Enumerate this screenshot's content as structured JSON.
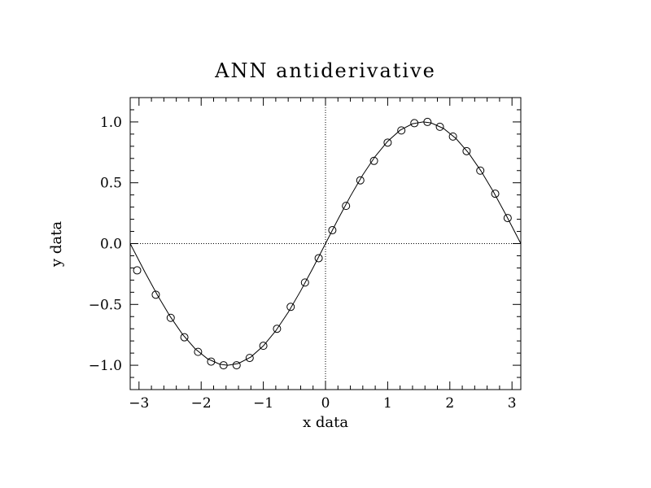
{
  "chart_data": {
    "type": "line",
    "title": "ANN antiderivative",
    "xlabel": "x data",
    "ylabel": "y data",
    "xlim": [
      -3.14159,
      3.14159
    ],
    "ylim": [
      -1.2,
      1.2
    ],
    "grid": false,
    "zero_lines": true,
    "x_ticks": [
      -3,
      -2,
      -1,
      0,
      1,
      2,
      3
    ],
    "x_tick_labels": [
      "−3",
      "−2",
      "−1",
      "0",
      "1",
      "2",
      "3"
    ],
    "y_ticks": [
      -1.0,
      -0.5,
      0.0,
      0.5,
      1.0
    ],
    "y_tick_labels": [
      "−1.0",
      "−0.5",
      "0.0",
      "0.5",
      "1.0"
    ],
    "series": [
      {
        "style": "line",
        "x": [
          -3.1416,
          -2.9,
          -2.7,
          -2.5,
          -2.3,
          -2.1,
          -1.9,
          -1.7,
          -1.5708,
          -1.4,
          -1.2,
          -1.0,
          -0.8,
          -0.6,
          -0.4,
          -0.2,
          0.0,
          0.2,
          0.4,
          0.6,
          0.8,
          1.0,
          1.2,
          1.4,
          1.5708,
          1.7,
          1.9,
          2.1,
          2.3,
          2.5,
          2.7,
          2.9,
          3.1416
        ],
        "y": [
          0.0,
          -0.239,
          -0.427,
          -0.598,
          -0.746,
          -0.863,
          -0.946,
          -0.992,
          -1.0,
          -0.985,
          -0.932,
          -0.841,
          -0.717,
          -0.565,
          -0.389,
          -0.199,
          0.0,
          0.199,
          0.389,
          0.565,
          0.717,
          0.841,
          0.932,
          0.985,
          1.0,
          0.992,
          0.946,
          0.863,
          0.746,
          0.598,
          0.427,
          0.239,
          0.0
        ]
      },
      {
        "style": "markers",
        "marker": "circle",
        "x": [
          -3.03,
          -2.73,
          -2.49,
          -2.27,
          -2.05,
          -1.84,
          -1.64,
          -1.43,
          -1.22,
          -1.0,
          -0.78,
          -0.56,
          -0.33,
          -0.11,
          0.11,
          0.33,
          0.56,
          0.78,
          1.0,
          1.22,
          1.43,
          1.64,
          1.84,
          2.05,
          2.27,
          2.49,
          2.73,
          2.93
        ],
        "y": [
          -0.22,
          -0.42,
          -0.61,
          -0.77,
          -0.89,
          -0.97,
          -1.0,
          -1.0,
          -0.94,
          -0.84,
          -0.7,
          -0.52,
          -0.32,
          -0.12,
          0.11,
          0.31,
          0.52,
          0.68,
          0.83,
          0.93,
          0.99,
          1.0,
          0.96,
          0.88,
          0.76,
          0.6,
          0.41,
          0.21
        ]
      }
    ]
  }
}
